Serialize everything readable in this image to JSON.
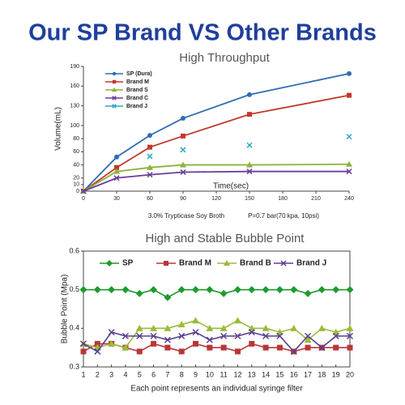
{
  "header": {
    "title": "Our SP Brand VS Other Brands"
  },
  "chart_data": [
    {
      "type": "line",
      "title": "High Throughput",
      "x_label": "Time(sec)",
      "y_label": "Volume(mL)",
      "notes": [
        "3.0% Trypticase Soy Broth",
        "P=0.7 bar(70 kpa, 10psi)"
      ],
      "x": [
        0,
        30,
        60,
        90,
        150,
        240
      ],
      "xlim": [
        0,
        240
      ],
      "xticks": [
        0,
        30,
        60,
        90,
        120,
        150,
        180,
        210,
        240
      ],
      "ylim": [
        0,
        190
      ],
      "yticks": [
        0,
        10,
        20,
        40,
        60,
        80,
        100,
        130,
        160,
        190
      ],
      "legend": "upper left",
      "series": [
        {
          "name": "SP (Dura)",
          "color": "#2e6db4",
          "marker": "circle",
          "values": [
            0,
            52,
            85,
            111,
            147,
            179
          ]
        },
        {
          "name": "Brand M",
          "color": "#c0392b",
          "marker": "square",
          "values": [
            0,
            36,
            67,
            84,
            117,
            146
          ]
        },
        {
          "name": "Brand S",
          "color": "#8db33a",
          "marker": "triangle",
          "values": [
            0,
            30,
            36,
            40,
            40,
            41
          ]
        },
        {
          "name": "Brand C",
          "color": "#6a3d9a",
          "marker": "x",
          "values": [
            0,
            20,
            25,
            29,
            30,
            30
          ]
        },
        {
          "name": "Brand J",
          "color": "#2aa8c8",
          "marker": "x",
          "mode": "markers",
          "values": [
            null,
            null,
            53,
            63,
            70,
            83
          ]
        }
      ]
    },
    {
      "type": "line",
      "title": "High and Stable Bubble Point",
      "x_label": "Each point represents an individual syringe filter",
      "y_label": "Bubble Point (Mpa)",
      "categories": [
        "1",
        "2",
        "3",
        "4",
        "5",
        "6",
        "7",
        "8",
        "9",
        "10",
        "11",
        "12",
        "13",
        "14",
        "15",
        "16",
        "17",
        "18",
        "19",
        "20"
      ],
      "ylim": [
        0.3,
        0.6
      ],
      "yticks": [
        0.3,
        0.4,
        0.5,
        0.6
      ],
      "legend": "top",
      "series": [
        {
          "name": "SP",
          "color": "#1f9a2e",
          "marker": "diamond",
          "values": [
            0.5,
            0.5,
            0.5,
            0.5,
            0.49,
            0.5,
            0.48,
            0.5,
            0.5,
            0.5,
            0.49,
            0.5,
            0.5,
            0.5,
            0.5,
            0.5,
            0.49,
            0.5,
            0.5,
            0.5
          ]
        },
        {
          "name": "Brand M",
          "color": "#b8373a",
          "marker": "square",
          "values": [
            0.34,
            0.36,
            0.36,
            0.35,
            0.34,
            0.36,
            0.35,
            0.34,
            0.36,
            0.35,
            0.35,
            0.34,
            0.36,
            0.35,
            0.35,
            0.34,
            0.35,
            0.35,
            0.35,
            0.35
          ]
        },
        {
          "name": "Brand B",
          "color": "#9bbb3b",
          "marker": "triangle",
          "values": [
            0.36,
            0.35,
            0.36,
            0.35,
            0.4,
            0.4,
            0.4,
            0.41,
            0.42,
            0.4,
            0.4,
            0.42,
            0.4,
            0.4,
            0.39,
            0.4,
            0.37,
            0.4,
            0.39,
            0.4
          ]
        },
        {
          "name": "Brand J",
          "color": "#5a3f8f",
          "marker": "x",
          "values": [
            0.36,
            0.34,
            0.39,
            0.38,
            0.38,
            0.38,
            0.37,
            0.38,
            0.39,
            0.37,
            0.38,
            0.38,
            0.39,
            0.38,
            0.38,
            0.34,
            0.38,
            0.35,
            0.38,
            0.38
          ]
        }
      ]
    }
  ]
}
